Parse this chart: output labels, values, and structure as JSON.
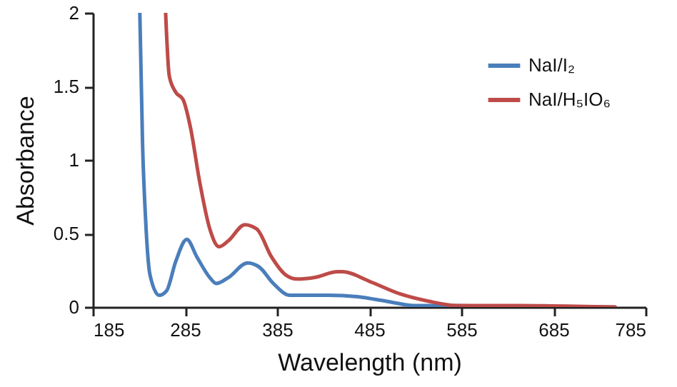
{
  "chart_data": {
    "type": "line",
    "xlabel": "Wavelength (nm)",
    "ylabel": "Absorbance",
    "xlim": [
      185,
      785
    ],
    "xticks": [
      185,
      285,
      385,
      485,
      585,
      685,
      785
    ],
    "ylim": [
      0,
      2
    ],
    "yticks": [
      0,
      0.5,
      1,
      1.5,
      2
    ],
    "grid": false,
    "legend": "top right",
    "marker": "none",
    "line_style": "solid",
    "series": [
      {
        "name": "NaI/I₂",
        "color": "#4a7ebb",
        "x": [
          236,
          239,
          242,
          247,
          257,
          265,
          275,
          287,
          298,
          312,
          319,
          332,
          353,
          366,
          381,
          399,
          441,
          472,
          503,
          534,
          575,
          650,
          752
        ],
        "values": [
          2.0,
          1.1,
          0.63,
          0.22,
          0.08,
          0.11,
          0.31,
          0.46,
          0.34,
          0.2,
          0.16,
          0.2,
          0.3,
          0.27,
          0.16,
          0.08,
          0.08,
          0.07,
          0.04,
          0.01,
          0.01,
          0,
          0
        ]
      },
      {
        "name": "NaI/H₅IO₆",
        "color": "#be4b48",
        "x": [
          264,
          268,
          275,
          283,
          291,
          301,
          312,
          322,
          332,
          350,
          363,
          379,
          394,
          407,
          425,
          451,
          456,
          487,
          518,
          549,
          580,
          648,
          752
        ],
        "values": [
          2.0,
          1.57,
          1.46,
          1.41,
          1.22,
          0.85,
          0.53,
          0.41,
          0.45,
          0.56,
          0.53,
          0.34,
          0.22,
          0.19,
          0.2,
          0.24,
          0.24,
          0.17,
          0.09,
          0.04,
          0.01,
          0.01,
          0
        ]
      }
    ]
  }
}
